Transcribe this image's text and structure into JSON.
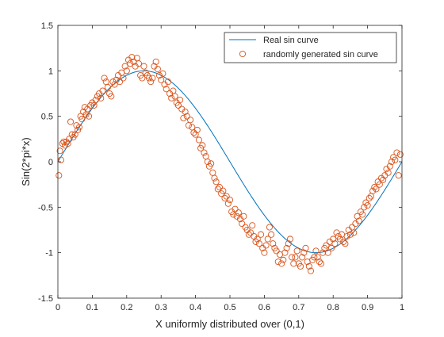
{
  "chart_data": {
    "type": "scatter",
    "title": "",
    "xlabel": "X uniformly distributed over (0,1)",
    "ylabel": "Sin(2*pi*x)",
    "xlim": [
      0,
      1
    ],
    "ylim": [
      -1.5,
      1.5
    ],
    "xticks": [
      0,
      0.1,
      0.2,
      0.3,
      0.4,
      0.5,
      0.6,
      0.7,
      0.8,
      0.9,
      1
    ],
    "xtick_labels": [
      "0",
      "0.1",
      "0.2",
      "0.3",
      "0.4",
      "0.5",
      "0.6",
      "0.7",
      "0.8",
      "0.9",
      "1"
    ],
    "yticks": [
      -1.5,
      -1,
      -0.5,
      0,
      0.5,
      1,
      1.5
    ],
    "ytick_labels": [
      "-1.5",
      "-1",
      "-0.5",
      "0",
      "0.5",
      "1",
      "1.5"
    ],
    "grid": false,
    "legend_position": "top-right",
    "series": [
      {
        "name": "Real sin curve",
        "kind": "line",
        "color": "#0072BD",
        "function": "sin(2*pi*x)"
      },
      {
        "name": "randomly generated sin curve",
        "kind": "scatter",
        "marker": "circle",
        "color": "#D95319",
        "points": [
          [
            0.003,
            -0.15
          ],
          [
            0.006,
            0.12
          ],
          [
            0.009,
            0.02
          ],
          [
            0.013,
            0.2
          ],
          [
            0.017,
            0.22
          ],
          [
            0.021,
            0.18
          ],
          [
            0.025,
            0.22
          ],
          [
            0.029,
            0.2
          ],
          [
            0.033,
            0.25
          ],
          [
            0.037,
            0.44
          ],
          [
            0.041,
            0.3
          ],
          [
            0.045,
            0.27
          ],
          [
            0.05,
            0.3
          ],
          [
            0.054,
            0.4
          ],
          [
            0.058,
            0.35
          ],
          [
            0.062,
            0.38
          ],
          [
            0.066,
            0.5
          ],
          [
            0.07,
            0.47
          ],
          [
            0.074,
            0.55
          ],
          [
            0.078,
            0.6
          ],
          [
            0.082,
            0.52
          ],
          [
            0.086,
            0.58
          ],
          [
            0.09,
            0.5
          ],
          [
            0.095,
            0.62
          ],
          [
            0.1,
            0.65
          ],
          [
            0.105,
            0.62
          ],
          [
            0.11,
            0.68
          ],
          [
            0.115,
            0.72
          ],
          [
            0.12,
            0.75
          ],
          [
            0.125,
            0.7
          ],
          [
            0.13,
            0.78
          ],
          [
            0.135,
            0.92
          ],
          [
            0.14,
            0.88
          ],
          [
            0.145,
            0.82
          ],
          [
            0.15,
            0.75
          ],
          [
            0.155,
            0.72
          ],
          [
            0.16,
            0.88
          ],
          [
            0.165,
            0.85
          ],
          [
            0.17,
            0.9
          ],
          [
            0.175,
            0.95
          ],
          [
            0.18,
            0.88
          ],
          [
            0.185,
            0.98
          ],
          [
            0.19,
            0.92
          ],
          [
            0.195,
            1.05
          ],
          [
            0.2,
            1.0
          ],
          [
            0.205,
            1.12
          ],
          [
            0.21,
            1.08
          ],
          [
            0.215,
            1.15
          ],
          [
            0.22,
            1.1
          ],
          [
            0.225,
            1.05
          ],
          [
            0.23,
            1.14
          ],
          [
            0.235,
            1.08
          ],
          [
            0.24,
            0.95
          ],
          [
            0.245,
            0.92
          ],
          [
            0.25,
            1.05
          ],
          [
            0.255,
            0.98
          ],
          [
            0.26,
            0.95
          ],
          [
            0.265,
            0.92
          ],
          [
            0.27,
            0.88
          ],
          [
            0.275,
            0.92
          ],
          [
            0.28,
            1.05
          ],
          [
            0.285,
            1.1
          ],
          [
            0.29,
            1.02
          ],
          [
            0.295,
            0.95
          ],
          [
            0.3,
            0.9
          ],
          [
            0.305,
            0.97
          ],
          [
            0.31,
            0.85
          ],
          [
            0.315,
            0.8
          ],
          [
            0.32,
            0.88
          ],
          [
            0.325,
            0.75
          ],
          [
            0.33,
            0.7
          ],
          [
            0.335,
            0.78
          ],
          [
            0.34,
            0.72
          ],
          [
            0.345,
            0.65
          ],
          [
            0.35,
            0.62
          ],
          [
            0.355,
            0.68
          ],
          [
            0.36,
            0.58
          ],
          [
            0.365,
            0.48
          ],
          [
            0.37,
            0.55
          ],
          [
            0.375,
            0.5
          ],
          [
            0.38,
            0.4
          ],
          [
            0.385,
            0.46
          ],
          [
            0.39,
            0.38
          ],
          [
            0.395,
            0.32
          ],
          [
            0.4,
            0.3
          ],
          [
            0.405,
            0.35
          ],
          [
            0.41,
            0.24
          ],
          [
            0.415,
            0.15
          ],
          [
            0.42,
            0.18
          ],
          [
            0.425,
            0.1
          ],
          [
            0.43,
            0.06
          ],
          [
            0.435,
            0.0
          ],
          [
            0.44,
            -0.05
          ],
          [
            0.445,
            -0.02
          ],
          [
            0.45,
            -0.12
          ],
          [
            0.455,
            -0.18
          ],
          [
            0.46,
            -0.22
          ],
          [
            0.465,
            -0.3
          ],
          [
            0.47,
            -0.28
          ],
          [
            0.475,
            -0.35
          ],
          [
            0.48,
            -0.32
          ],
          [
            0.485,
            -0.4
          ],
          [
            0.49,
            -0.38
          ],
          [
            0.495,
            -0.46
          ],
          [
            0.5,
            -0.42
          ],
          [
            0.505,
            -0.55
          ],
          [
            0.51,
            -0.58
          ],
          [
            0.515,
            -0.52
          ],
          [
            0.52,
            -0.6
          ],
          [
            0.525,
            -0.56
          ],
          [
            0.53,
            -0.63
          ],
          [
            0.535,
            -0.68
          ],
          [
            0.54,
            -0.6
          ],
          [
            0.545,
            -0.72
          ],
          [
            0.55,
            -0.75
          ],
          [
            0.555,
            -0.8
          ],
          [
            0.56,
            -0.78
          ],
          [
            0.565,
            -0.7
          ],
          [
            0.57,
            -0.82
          ],
          [
            0.575,
            -0.88
          ],
          [
            0.58,
            -0.85
          ],
          [
            0.585,
            -0.9
          ],
          [
            0.59,
            -0.8
          ],
          [
            0.595,
            -0.95
          ],
          [
            0.6,
            -1.0
          ],
          [
            0.605,
            -0.92
          ],
          [
            0.61,
            -0.85
          ],
          [
            0.615,
            -0.72
          ],
          [
            0.62,
            -0.8
          ],
          [
            0.625,
            -0.9
          ],
          [
            0.63,
            -0.95
          ],
          [
            0.635,
            -0.98
          ],
          [
            0.64,
            -1.1
          ],
          [
            0.645,
            -1.02
          ],
          [
            0.65,
            -1.12
          ],
          [
            0.655,
            -1.08
          ],
          [
            0.66,
            -1.0
          ],
          [
            0.665,
            -0.95
          ],
          [
            0.67,
            -0.9
          ],
          [
            0.675,
            -0.85
          ],
          [
            0.68,
            -1.05
          ],
          [
            0.685,
            -1.12
          ],
          [
            0.69,
            -1.05
          ],
          [
            0.695,
            -0.98
          ],
          [
            0.7,
            -1.12
          ],
          [
            0.705,
            -1.15
          ],
          [
            0.71,
            -1.05
          ],
          [
            0.715,
            -1.0
          ],
          [
            0.72,
            -0.95
          ],
          [
            0.725,
            -1.1
          ],
          [
            0.73,
            -1.15
          ],
          [
            0.735,
            -1.2
          ],
          [
            0.74,
            -1.08
          ],
          [
            0.745,
            -1.05
          ],
          [
            0.75,
            -0.98
          ],
          [
            0.755,
            -1.05
          ],
          [
            0.76,
            -1.1
          ],
          [
            0.765,
            -1.12
          ],
          [
            0.77,
            -1.0
          ],
          [
            0.775,
            -0.95
          ],
          [
            0.78,
            -0.92
          ],
          [
            0.785,
            -1.0
          ],
          [
            0.79,
            -0.88
          ],
          [
            0.795,
            -0.95
          ],
          [
            0.8,
            -0.85
          ],
          [
            0.805,
            -0.9
          ],
          [
            0.81,
            -0.78
          ],
          [
            0.815,
            -0.82
          ],
          [
            0.82,
            -0.85
          ],
          [
            0.825,
            -0.8
          ],
          [
            0.83,
            -0.88
          ],
          [
            0.835,
            -0.9
          ],
          [
            0.84,
            -0.82
          ],
          [
            0.845,
            -0.75
          ],
          [
            0.85,
            -0.8
          ],
          [
            0.855,
            -0.72
          ],
          [
            0.86,
            -0.78
          ],
          [
            0.865,
            -0.68
          ],
          [
            0.87,
            -0.6
          ],
          [
            0.875,
            -0.65
          ],
          [
            0.88,
            -0.55
          ],
          [
            0.885,
            -0.58
          ],
          [
            0.89,
            -0.5
          ],
          [
            0.895,
            -0.45
          ],
          [
            0.9,
            -0.48
          ],
          [
            0.905,
            -0.4
          ],
          [
            0.91,
            -0.38
          ],
          [
            0.915,
            -0.32
          ],
          [
            0.92,
            -0.28
          ],
          [
            0.925,
            -0.3
          ],
          [
            0.93,
            -0.22
          ],
          [
            0.935,
            -0.25
          ],
          [
            0.94,
            -0.18
          ],
          [
            0.945,
            -0.2
          ],
          [
            0.95,
            -0.15
          ],
          [
            0.955,
            -0.08
          ],
          [
            0.96,
            -0.12
          ],
          [
            0.965,
            -0.05
          ],
          [
            0.97,
            0.0
          ],
          [
            0.975,
            0.05
          ],
          [
            0.98,
            0.02
          ],
          [
            0.985,
            0.1
          ],
          [
            0.99,
            -0.15
          ],
          [
            0.995,
            0.08
          ]
        ]
      }
    ]
  }
}
